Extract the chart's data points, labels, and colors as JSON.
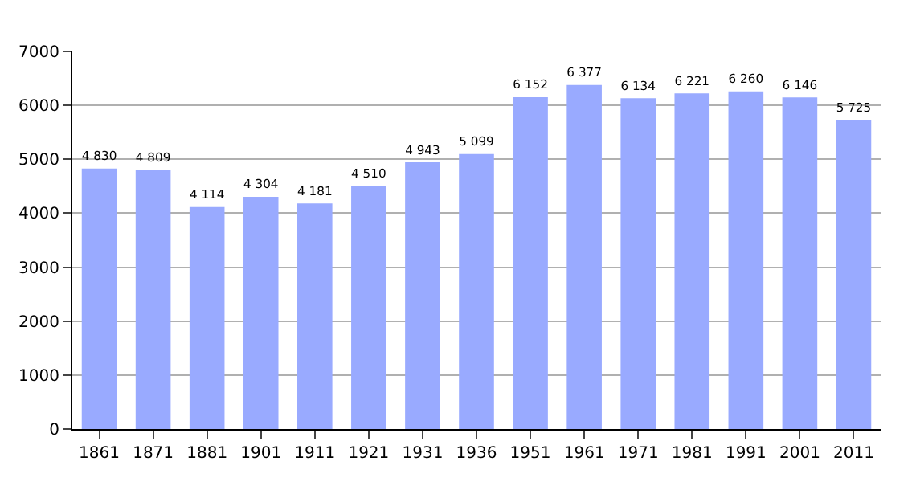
{
  "chart_data": {
    "type": "bar",
    "categories": [
      "1861",
      "1871",
      "1881",
      "1901",
      "1911",
      "1921",
      "1931",
      "1936",
      "1951",
      "1961",
      "1971",
      "1981",
      "1991",
      "2001",
      "2011"
    ],
    "values": [
      4830,
      4809,
      4114,
      4304,
      4181,
      4510,
      4943,
      5099,
      6152,
      6377,
      6134,
      6221,
      6260,
      6146,
      5725
    ],
    "value_labels": [
      "4 830",
      "4 809",
      "4 114",
      "4 304",
      "4 181",
      "4 510",
      "4 943",
      "5 099",
      "6 152",
      "6 377",
      "6 134",
      "6 221",
      "6 260",
      "6 146",
      "5 725"
    ],
    "color": "#99aaff",
    "ylim": [
      0,
      7000
    ],
    "yticks": [
      0,
      1000,
      2000,
      3000,
      4000,
      5000,
      6000,
      7000
    ],
    "grid": "y",
    "legend": false
  }
}
